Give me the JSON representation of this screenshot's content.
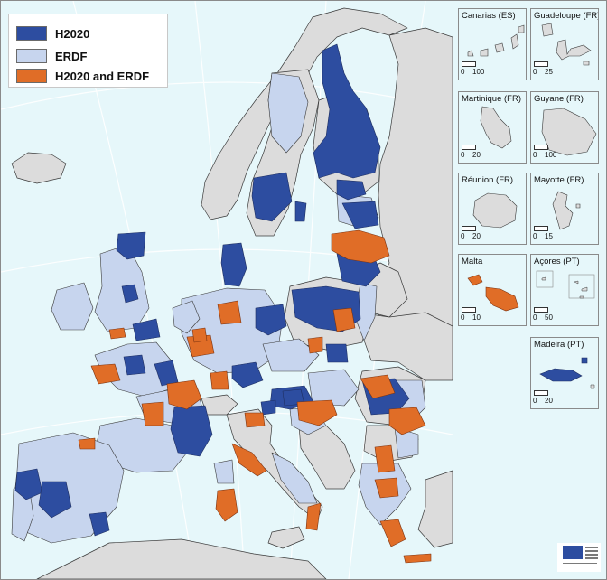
{
  "colors": {
    "sea": "#e6f7fa",
    "land_other": "#dcdcdc",
    "h2020": "#2d4da0",
    "erdf": "#c7d5ee",
    "both": "#e06d27",
    "border": "#3a3a3a"
  },
  "legend": {
    "items": [
      {
        "label": "H2020",
        "color": "#2d4da0"
      },
      {
        "label": "ERDF",
        "color": "#c7d5ee"
      },
      {
        "label": "H2020 and ERDF",
        "color": "#e06d27"
      }
    ]
  },
  "insets": [
    {
      "title": "Canarias (ES)",
      "scale_max": "100"
    },
    {
      "title": "Guadeloupe (FR)",
      "scale_max": "25"
    },
    {
      "title": "Martinique (FR)",
      "scale_max": "20"
    },
    {
      "title": "Guyane (FR)",
      "scale_max": "100"
    },
    {
      "title": "Réunion (FR)",
      "scale_max": "20"
    },
    {
      "title": "Mayotte (FR)",
      "scale_max": "15"
    },
    {
      "title": "Malta",
      "scale_max": "10"
    },
    {
      "title": "Açores (PT)",
      "scale_max": "50"
    },
    {
      "title": "Madeira (PT)",
      "scale_max": "20"
    }
  ],
  "scale_zero": "0"
}
